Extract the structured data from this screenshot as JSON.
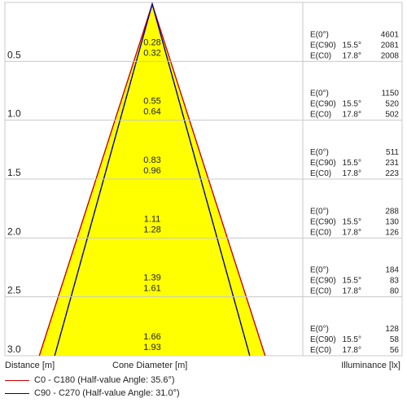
{
  "chart_data": {
    "type": "cone-diagram",
    "xlabel": "Cone Diameter [m]",
    "ylabel": "Distance [m]",
    "rlabel": "Illuminance [lx]",
    "series": [
      {
        "name": "C0 - C180 (Half-value Angle: 35.6°)",
        "half_value_angle": 35.6,
        "color": "#cc0000"
      },
      {
        "name": "C90 - C270 (Half-value Angle: 31.0°)",
        "half_value_angle": 31.0,
        "color": "#000099"
      }
    ],
    "rows": [
      {
        "distance": "0.5",
        "diam_c90": "0.28",
        "diam_c0": "0.32",
        "illum": [
          {
            "label": "E(0°)",
            "angle": "",
            "value": "4601"
          },
          {
            "label": "E(C90)",
            "angle": "15.5°",
            "value": "2081"
          },
          {
            "label": "E(C0)",
            "angle": "17.8°",
            "value": "2008"
          }
        ]
      },
      {
        "distance": "1.0",
        "diam_c90": "0.55",
        "diam_c0": "0.64",
        "illum": [
          {
            "label": "E(0°)",
            "angle": "",
            "value": "1150"
          },
          {
            "label": "E(C90)",
            "angle": "15.5°",
            "value": "520"
          },
          {
            "label": "E(C0)",
            "angle": "17.8°",
            "value": "502"
          }
        ]
      },
      {
        "distance": "1.5",
        "diam_c90": "0.83",
        "diam_c0": "0.96",
        "illum": [
          {
            "label": "E(0°)",
            "angle": "",
            "value": "511"
          },
          {
            "label": "E(C90)",
            "angle": "15.5°",
            "value": "231"
          },
          {
            "label": "E(C0)",
            "angle": "17.8°",
            "value": "223"
          }
        ]
      },
      {
        "distance": "2.0",
        "diam_c90": "1.11",
        "diam_c0": "1.28",
        "illum": [
          {
            "label": "E(0°)",
            "angle": "",
            "value": "288"
          },
          {
            "label": "E(C90)",
            "angle": "15.5°",
            "value": "130"
          },
          {
            "label": "E(C0)",
            "angle": "17.8°",
            "value": "126"
          }
        ]
      },
      {
        "distance": "2.5",
        "diam_c90": "1.39",
        "diam_c0": "1.61",
        "illum": [
          {
            "label": "E(0°)",
            "angle": "",
            "value": "184"
          },
          {
            "label": "E(C90)",
            "angle": "15.5°",
            "value": "83"
          },
          {
            "label": "E(C0)",
            "angle": "17.8°",
            "value": "80"
          }
        ]
      },
      {
        "distance": "3.0",
        "diam_c90": "1.66",
        "diam_c0": "1.93",
        "illum": [
          {
            "label": "E(0°)",
            "angle": "",
            "value": "128"
          },
          {
            "label": "E(C90)",
            "angle": "15.5°",
            "value": "58"
          },
          {
            "label": "E(C0)",
            "angle": "17.8°",
            "value": "56"
          }
        ]
      }
    ],
    "colors": {
      "cone_fill": "#ffff00",
      "c0_line": "#cc0000",
      "c90_line": "#000099",
      "grid": "#c8c8c8"
    }
  }
}
